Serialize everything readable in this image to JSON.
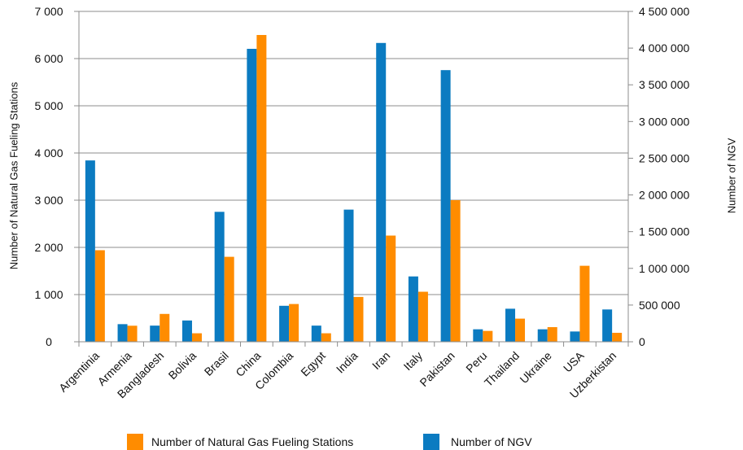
{
  "chart_data": {
    "type": "bar",
    "categories": [
      "Argentinia",
      "Armenia",
      "Bangladesh",
      "Bolivia",
      "Brasil",
      "China",
      "Colombia",
      "Egypt",
      "India",
      "Iran",
      "Italy",
      "Pakistan",
      "Peru",
      "Thailand",
      "Ukraine",
      "USA",
      "Uzberkistan"
    ],
    "series": [
      {
        "name": "Number of NGV",
        "axis": "right",
        "color": "#0b7bc1",
        "values": [
          2470000,
          240000,
          220000,
          290000,
          1770000,
          3990000,
          490000,
          220000,
          1800000,
          4070000,
          890000,
          3700000,
          170000,
          450000,
          170000,
          140000,
          440000
        ]
      },
      {
        "name": "Number of Natural Gas Fueling Stations",
        "axis": "left",
        "color": "#ff8c00",
        "values": [
          1940,
          340,
          590,
          180,
          1800,
          6500,
          800,
          180,
          950,
          2250,
          1060,
          3000,
          230,
          490,
          310,
          1610,
          190
        ]
      }
    ],
    "ylabel_left": "Number of Natural Gas Fueling Stations",
    "ylabel_right": "Number of NGV",
    "ylim_left": [
      0,
      7000
    ],
    "ylim_right": [
      0,
      4500000
    ],
    "yticks_left": [
      "0",
      "1 000",
      "2 000",
      "3 000",
      "4 000",
      "5 000",
      "6 000",
      "7 000"
    ],
    "yticks_right": [
      "0",
      "500 000",
      "1 000 000",
      "1 500 000",
      "2 000 000",
      "2 500 000",
      "3 000 000",
      "3 500 000",
      "4 000 000",
      "4 500 000"
    ],
    "grid": true,
    "legend_position": "bottom",
    "legend": [
      {
        "label": "Number of Natural Gas Fueling Stations",
        "color": "#ff8c00"
      },
      {
        "label": "Number of NGV",
        "color": "#0b7bc1"
      }
    ]
  }
}
